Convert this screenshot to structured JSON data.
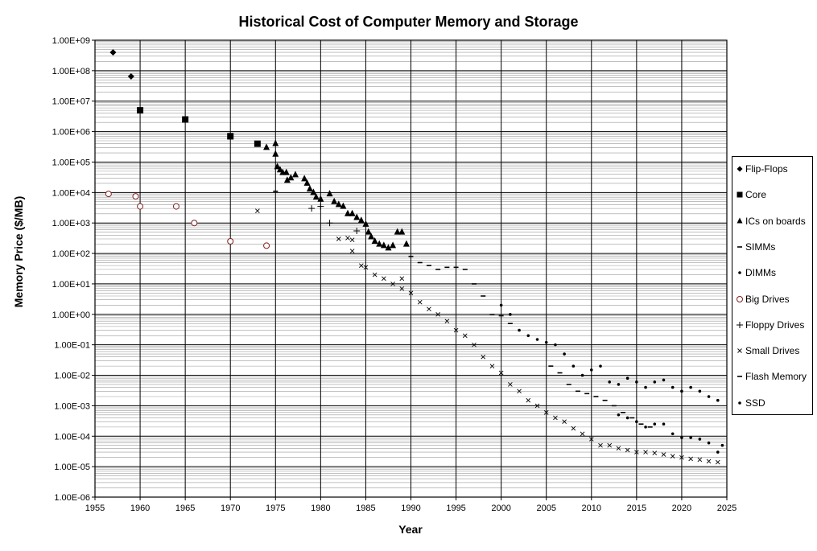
{
  "chart_data": {
    "type": "scatter",
    "title": "Historical Cost of Computer Memory and Storage",
    "xlabel": "Year",
    "ylabel": "Memory Price ($/MB)",
    "xlim": [
      1955,
      2025
    ],
    "ylim": [
      1e-06,
      1000000000.0
    ],
    "yscale": "log",
    "x_ticks": [
      "1955",
      "1960",
      "1965",
      "1970",
      "1975",
      "1980",
      "1985",
      "1990",
      "1995",
      "2000",
      "2005",
      "2010",
      "2015",
      "2020",
      "2025"
    ],
    "y_ticks": [
      "1.00E+09",
      "1.00E+08",
      "1.00E+07",
      "1.00E+06",
      "1.00E+05",
      "1.00E+04",
      "1.00E+03",
      "1.00E+02",
      "1.00E+01",
      "1.00E+00",
      "1.00E-01",
      "1.00E-02",
      "1.00E-03",
      "1.00E-04",
      "1.00E-05",
      "1.00E-06"
    ],
    "grid": "horizontal major and minor lines, vertical lines every 5 years",
    "legend_position": "right",
    "series": [
      {
        "name": "Flip-Flops",
        "marker": "diamond",
        "color": "#000000",
        "points": [
          [
            1957,
            400000000.0
          ],
          [
            1959,
            65000000.0
          ]
        ]
      },
      {
        "name": "Core",
        "marker": "square",
        "color": "#000000",
        "points": [
          [
            1960,
            5000000.0
          ],
          [
            1965,
            2500000.0
          ],
          [
            1970,
            700000.0
          ],
          [
            1973,
            400000.0
          ]
        ]
      },
      {
        "name": "ICs on boards",
        "marker": "triangle",
        "color": "#000000",
        "points": [
          [
            1974,
            300000.0
          ],
          [
            1975,
            400000.0
          ],
          [
            1975,
            180000.0
          ],
          [
            1975.2,
            70000.0
          ],
          [
            1975.5,
            55000.0
          ],
          [
            1975.8,
            45000.0
          ],
          [
            1976.2,
            45000.0
          ],
          [
            1976.3,
            25000.0
          ],
          [
            1976.7,
            30000.0
          ],
          [
            1977.2,
            38000.0
          ],
          [
            1978.2,
            28000.0
          ],
          [
            1978.5,
            20000.0
          ],
          [
            1978.8,
            13000.0
          ],
          [
            1979.2,
            10000.0
          ],
          [
            1979.5,
            7000.0
          ],
          [
            1980,
            6000.0
          ],
          [
            1981,
            9000.0
          ],
          [
            1981.5,
            5000.0
          ],
          [
            1982,
            4000.0
          ],
          [
            1982.5,
            3500.0
          ],
          [
            1983,
            2000.0
          ],
          [
            1983.5,
            2000.0
          ],
          [
            1984,
            1500.0
          ],
          [
            1984.5,
            1200.0
          ],
          [
            1985,
            900
          ],
          [
            1985.3,
            500
          ],
          [
            1985.6,
            350
          ],
          [
            1986,
            250
          ],
          [
            1986.5,
            200
          ],
          [
            1987,
            180
          ],
          [
            1987.5,
            150
          ],
          [
            1988,
            180
          ],
          [
            1988.5,
            500
          ],
          [
            1989,
            500
          ],
          [
            1989.5,
            200
          ]
        ]
      },
      {
        "name": "SIMMs",
        "marker": "dash",
        "color": "#000000",
        "points": [
          [
            1975.0,
            11000.0
          ],
          [
            1990,
            80
          ],
          [
            1991,
            50
          ],
          [
            1992,
            40
          ],
          [
            1993,
            30
          ],
          [
            1994,
            35
          ],
          [
            1995,
            35
          ],
          [
            1996,
            30
          ],
          [
            1997,
            10
          ],
          [
            1998,
            4
          ],
          [
            1999,
            1
          ],
          [
            2000,
            0.9
          ],
          [
            2001,
            0.5
          ]
        ]
      },
      {
        "name": "DIMMs",
        "marker": "dot",
        "color": "#000000",
        "points": [
          [
            2000,
            2
          ],
          [
            2001,
            1
          ],
          [
            2002,
            0.3
          ],
          [
            2003,
            0.2
          ],
          [
            2004,
            0.15
          ],
          [
            2005,
            0.12
          ],
          [
            2006,
            0.1
          ],
          [
            2007,
            0.05
          ],
          [
            2008,
            0.02
          ],
          [
            2009,
            0.01
          ],
          [
            2010,
            0.015
          ],
          [
            2011,
            0.02
          ],
          [
            2012,
            0.006
          ],
          [
            2013,
            0.005
          ],
          [
            2014,
            0.008
          ],
          [
            2015,
            0.006
          ],
          [
            2016,
            0.004
          ],
          [
            2017,
            0.006
          ],
          [
            2018,
            0.007
          ],
          [
            2019,
            0.004
          ],
          [
            2020,
            0.003
          ],
          [
            2021,
            0.004
          ],
          [
            2022,
            0.003
          ],
          [
            2023,
            0.002
          ],
          [
            2024,
            0.0015
          ]
        ]
      },
      {
        "name": "Big Drives",
        "marker": "circle",
        "color": "#7f1f1f",
        "points": [
          [
            1956.5,
            9000
          ],
          [
            1959.5,
            7500
          ],
          [
            1960,
            3500
          ],
          [
            1964,
            3500
          ],
          [
            1966,
            1000
          ],
          [
            1970,
            250
          ],
          [
            1974,
            180
          ]
        ]
      },
      {
        "name": "Floppy Drives",
        "marker": "plus",
        "color": "#000000",
        "points": [
          [
            1979,
            3000
          ],
          [
            1980,
            3500
          ],
          [
            1981,
            1000
          ],
          [
            1984,
            550
          ]
        ]
      },
      {
        "name": "Small Drives",
        "marker": "x",
        "color": "#000000",
        "points": [
          [
            1973,
            2500
          ],
          [
            1982,
            300
          ],
          [
            1983,
            320
          ],
          [
            1983.5,
            280
          ],
          [
            1983.5,
            120
          ],
          [
            1984.5,
            40
          ],
          [
            1985,
            35
          ],
          [
            1986,
            20
          ],
          [
            1987,
            15
          ],
          [
            1988,
            10
          ],
          [
            1989,
            15
          ],
          [
            1989,
            7
          ],
          [
            1990,
            5
          ],
          [
            1991,
            2.5
          ],
          [
            1992,
            1.5
          ],
          [
            1993,
            1
          ],
          [
            1994,
            0.6
          ],
          [
            1995,
            0.3
          ],
          [
            1996,
            0.2
          ],
          [
            1997,
            0.1
          ],
          [
            1998,
            0.04
          ],
          [
            1999,
            0.02
          ],
          [
            2000,
            0.012
          ],
          [
            2001,
            0.005
          ],
          [
            2002,
            0.003
          ],
          [
            2003,
            0.0015
          ],
          [
            2004,
            0.001
          ],
          [
            2005,
            0.0006
          ],
          [
            2006,
            0.0004
          ],
          [
            2007,
            0.0003
          ],
          [
            2008,
            0.00018
          ],
          [
            2009,
            0.00012
          ],
          [
            2010,
            8e-05
          ],
          [
            2011,
            5e-05
          ],
          [
            2012,
            5e-05
          ],
          [
            2013,
            4e-05
          ],
          [
            2014,
            3.5e-05
          ],
          [
            2015,
            3e-05
          ],
          [
            2016,
            3e-05
          ],
          [
            2017,
            2.8e-05
          ],
          [
            2018,
            2.5e-05
          ],
          [
            2019,
            2.2e-05
          ],
          [
            2020,
            2e-05
          ],
          [
            2021,
            1.8e-05
          ],
          [
            2022,
            1.7e-05
          ],
          [
            2023,
            1.5e-05
          ],
          [
            2024,
            1.4e-05
          ]
        ]
      },
      {
        "name": "Flash Memory",
        "marker": "dash",
        "color": "#000000",
        "points": [
          [
            2005.5,
            0.02
          ],
          [
            2006.5,
            0.012
          ],
          [
            2007.5,
            0.005
          ],
          [
            2008.5,
            0.003
          ],
          [
            2009.5,
            0.0025
          ],
          [
            2010.5,
            0.002
          ],
          [
            2011.5,
            0.0015
          ],
          [
            2012.5,
            0.001
          ],
          [
            2013.5,
            0.0006
          ],
          [
            2014.5,
            0.0004
          ],
          [
            2015.5,
            0.00025
          ],
          [
            2016.5,
            0.0002
          ]
        ]
      },
      {
        "name": "SSD",
        "marker": "dot",
        "color": "#000000",
        "points": [
          [
            2013,
            0.0005
          ],
          [
            2014,
            0.0004
          ],
          [
            2015,
            0.0003
          ],
          [
            2016,
            0.0002
          ],
          [
            2017,
            0.00025
          ],
          [
            2018,
            0.00025
          ],
          [
            2019,
            0.00012
          ],
          [
            2020,
            9e-05
          ],
          [
            2021,
            9e-05
          ],
          [
            2022,
            8e-05
          ],
          [
            2023,
            6e-05
          ],
          [
            2024,
            3e-05
          ],
          [
            2024.5,
            5e-05
          ]
        ]
      }
    ]
  }
}
